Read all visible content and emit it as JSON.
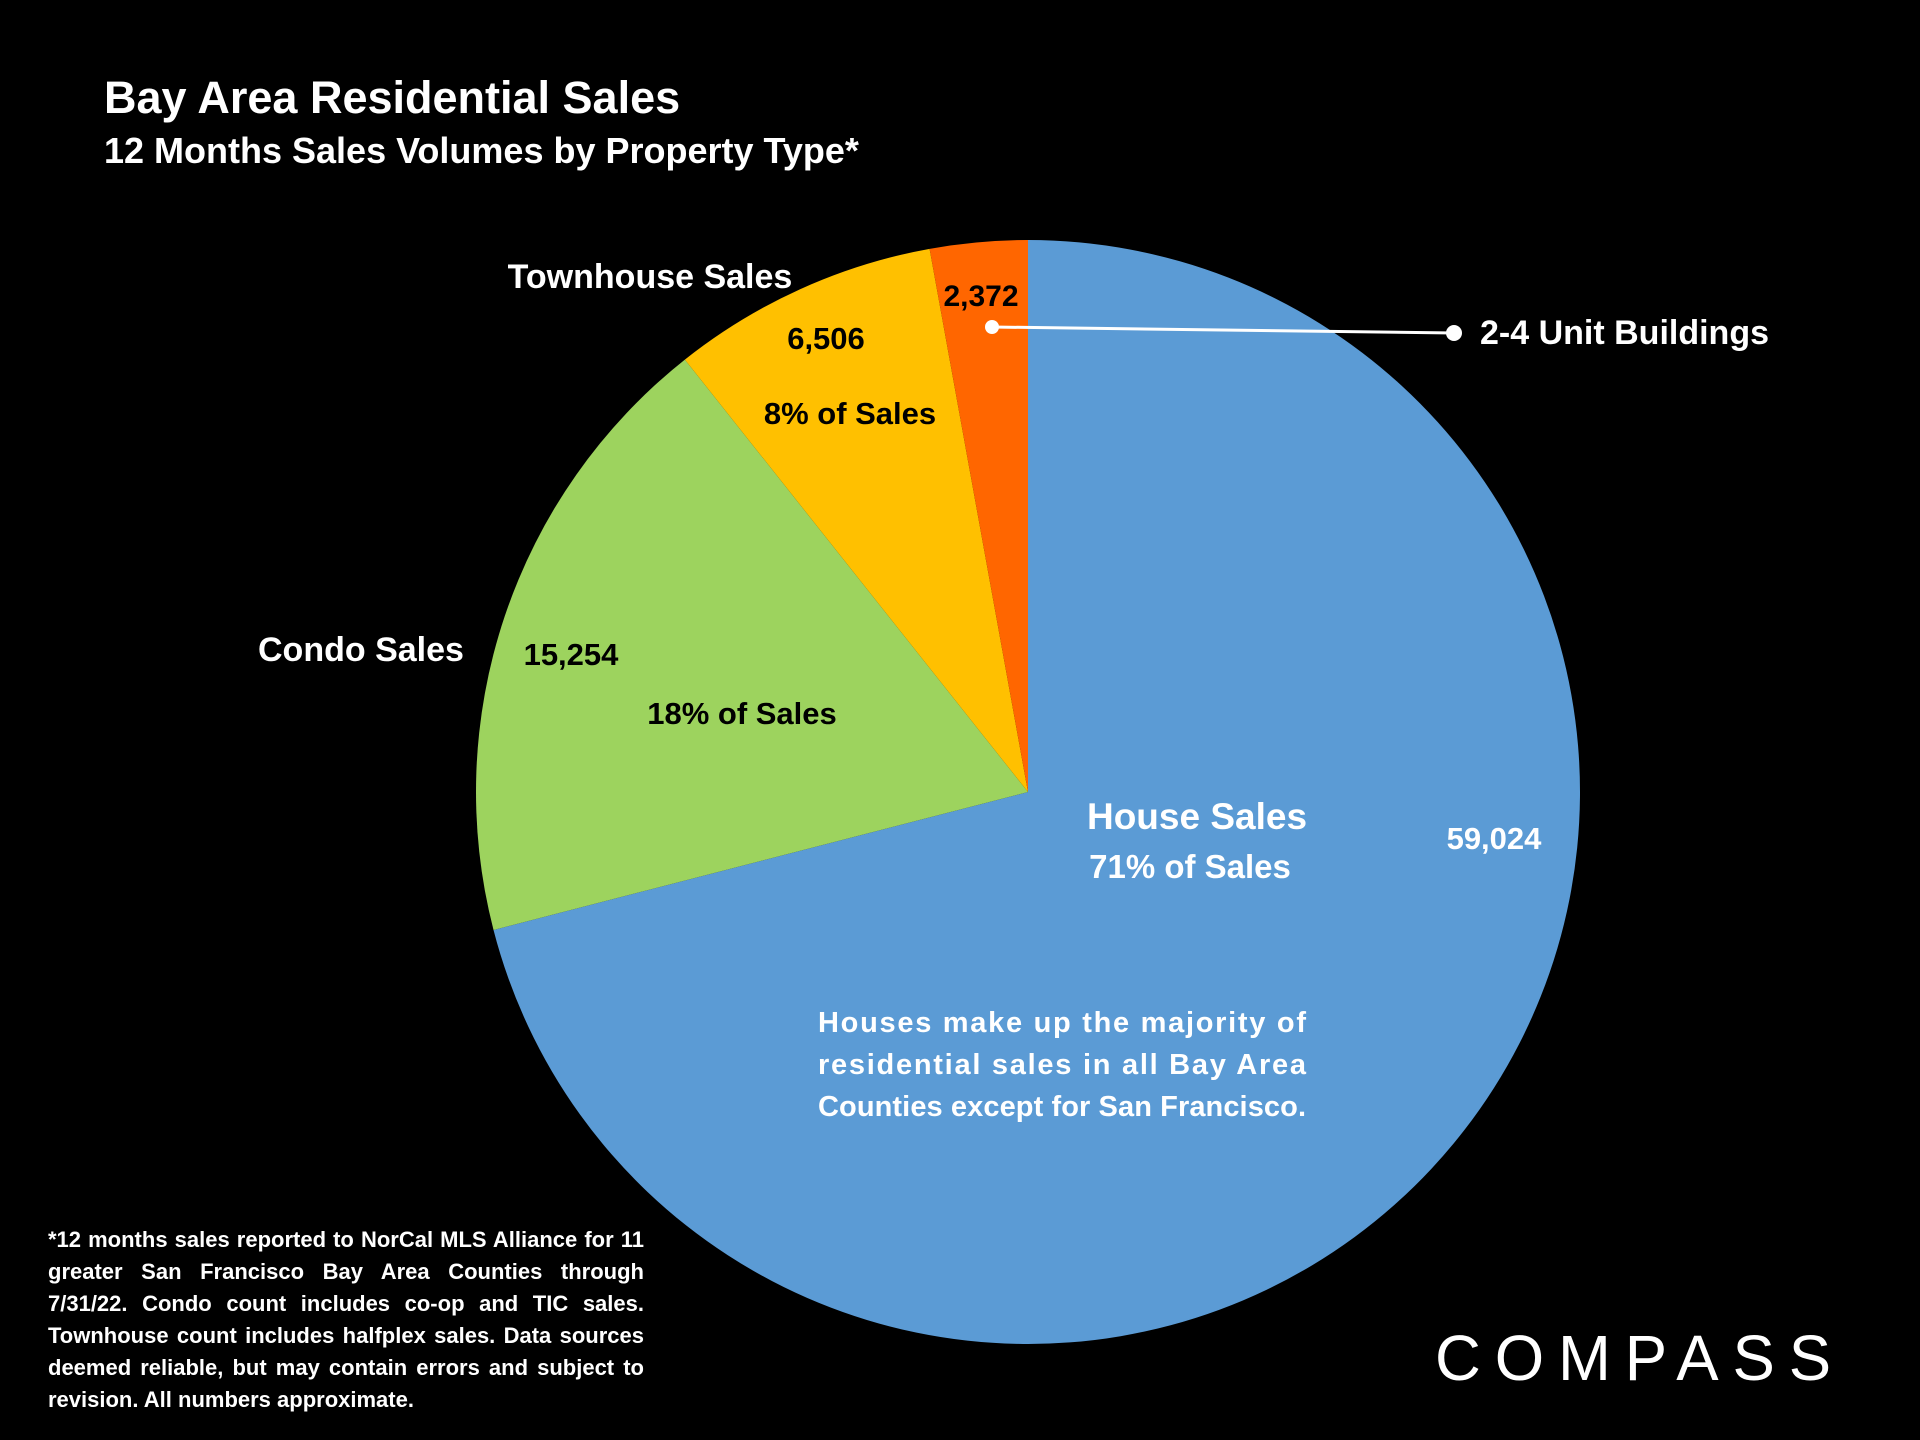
{
  "header": {
    "title": "Bay Area Residential Sales",
    "subtitle": "12 Months Sales Volumes by Property Type*"
  },
  "chart_data": {
    "type": "pie",
    "slices": [
      {
        "key": "house",
        "label": "House Sales",
        "value": 59024,
        "value_label": "59,024",
        "pct_label": "71% of Sales",
        "color": "#5B9BD5"
      },
      {
        "key": "condo",
        "label": "Condo Sales",
        "value": 15254,
        "value_label": "15,254",
        "pct_label": "18% of Sales",
        "color": "#9DD35E"
      },
      {
        "key": "townhouse",
        "label": "Townhouse Sales",
        "value": 6506,
        "value_label": "6,506",
        "pct_label": "8% of Sales",
        "color": "#FFC000"
      },
      {
        "key": "units",
        "label": "2-4 Unit Buildings",
        "value": 2372,
        "value_label": "2,372",
        "color": "#FF6600"
      }
    ],
    "annotation": [
      "Houses make up the majority of",
      "residential sales in all Bay Area",
      "Counties except for San Francisco."
    ]
  },
  "footnote": "*12 months sales reported to NorCal MLS Alliance for 11 greater San Francisco Bay Area Counties through 7/31/22. Condo count includes co-op and TIC sales. Townhouse count includes halfplex sales. Data sources deemed reliable, but may contain errors and subject to revision. All numbers approximate.",
  "logo_text": "COMPASS"
}
